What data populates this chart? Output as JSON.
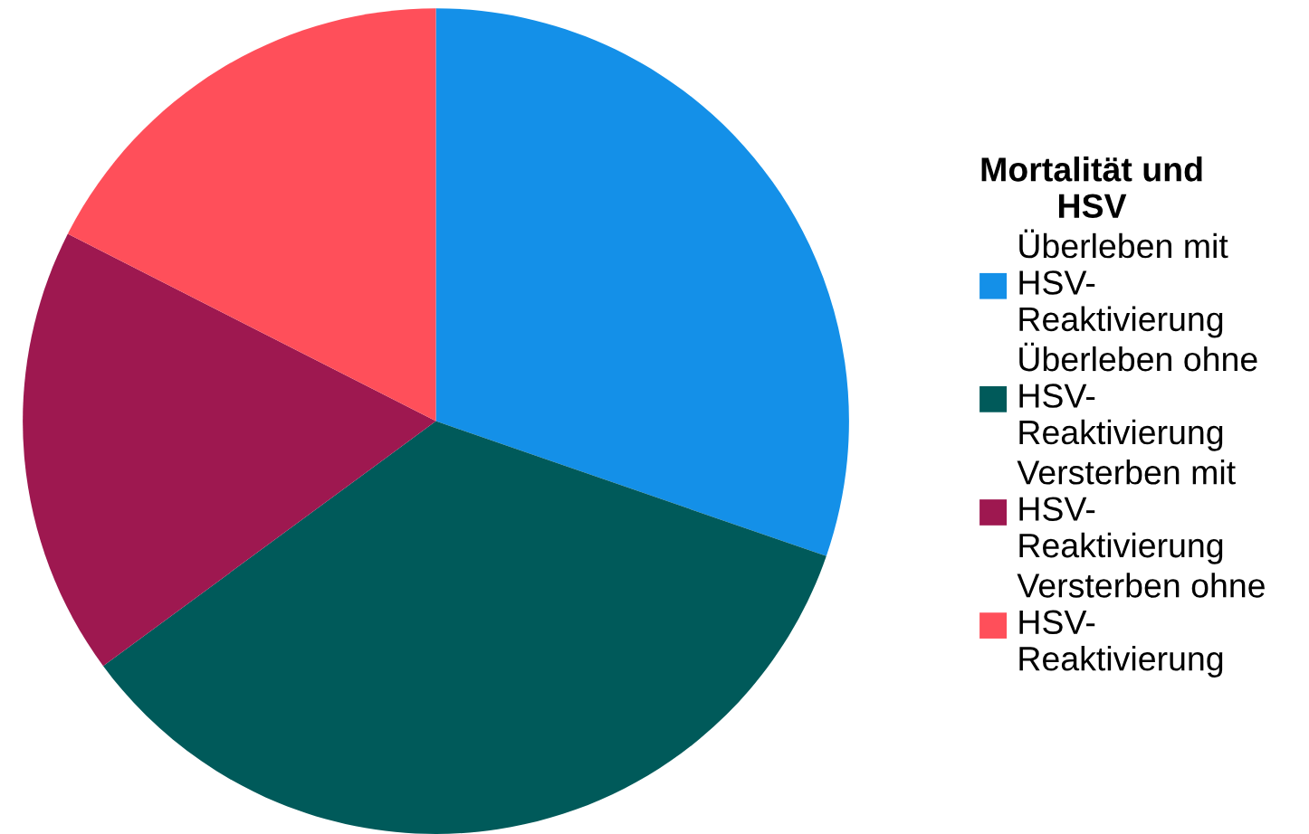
{
  "chart_data": {
    "type": "pie",
    "legend_title": "Mortalität und\nHSV",
    "categories": [
      "Überleben mit\nHSV-\nReaktivierung",
      "Überleben ohne\nHSV-\nReaktivierung",
      "Versterben mit\nHSV-\nReaktivierung",
      "Versterben ohne\nHSV-\nReaktivierung"
    ],
    "values": [
      30.3,
      34.6,
      17.6,
      17.5
    ],
    "colors": [
      "#1490e8",
      "#005a5a",
      "#9e1850",
      "#ff4f5a"
    ],
    "legend": "right"
  }
}
